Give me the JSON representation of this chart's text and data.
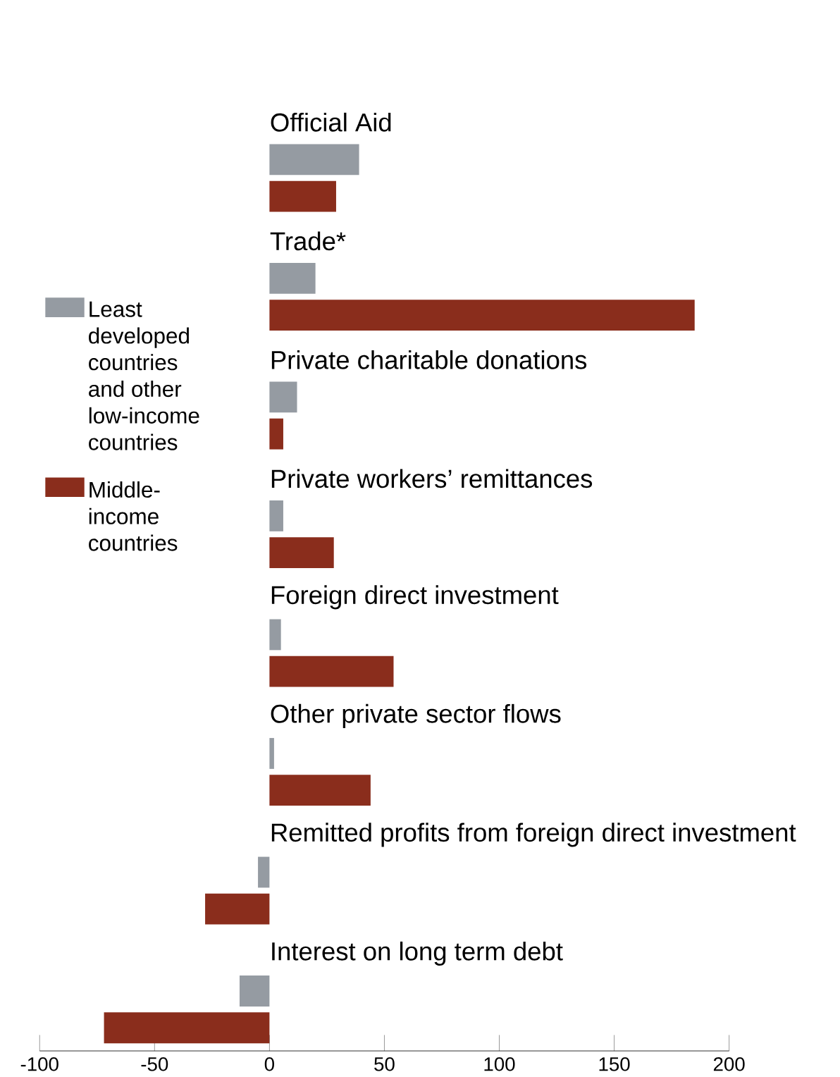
{
  "chart_data": {
    "type": "bar",
    "orientation": "horizontal",
    "categories": [
      "Official Aid",
      "Trade*",
      "Private charitable donations",
      "Private workers’ remittances",
      "Foreign direct investment",
      "Other private sector flows",
      "Remitted profits from foreign direct investment",
      "Interest on long term debt"
    ],
    "series": [
      {
        "name": "Least developed countries and other low-income countries",
        "color": "#959ba2",
        "values": [
          39,
          20,
          12,
          6,
          5,
          2,
          -5,
          -13
        ]
      },
      {
        "name": "Middle-income countries",
        "color": "#8a2d1c",
        "values": [
          29,
          185,
          6,
          28,
          54,
          44,
          -28,
          -72
        ]
      }
    ],
    "xlim": [
      -100,
      200
    ],
    "xticks": [
      -100,
      -50,
      0,
      50,
      100,
      150,
      200
    ],
    "legend": "left"
  }
}
